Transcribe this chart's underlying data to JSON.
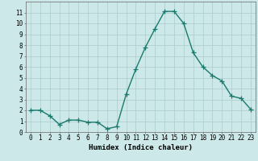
{
  "x": [
    0,
    1,
    2,
    3,
    4,
    5,
    6,
    7,
    8,
    9,
    10,
    11,
    12,
    13,
    14,
    15,
    16,
    17,
    18,
    19,
    20,
    21,
    22,
    23
  ],
  "y": [
    2,
    2,
    1.5,
    0.7,
    1.1,
    1.1,
    0.9,
    0.9,
    0.3,
    0.5,
    3.5,
    5.8,
    7.8,
    9.5,
    11.1,
    11.1,
    10.0,
    7.3,
    6.0,
    5.2,
    4.7,
    3.3,
    3.1,
    2.1
  ],
  "line_color": "#1a7a6e",
  "marker": "+",
  "marker_size": 4,
  "linewidth": 1.0,
  "bg_color": "#cce8e8",
  "grid_color": "#aacccc",
  "xlabel": "Humidex (Indice chaleur)",
  "xlim": [
    -0.5,
    23.5
  ],
  "ylim": [
    0,
    12
  ],
  "yticks": [
    0,
    1,
    2,
    3,
    4,
    5,
    6,
    7,
    8,
    9,
    10,
    11
  ],
  "xticks": [
    0,
    1,
    2,
    3,
    4,
    5,
    6,
    7,
    8,
    9,
    10,
    11,
    12,
    13,
    14,
    15,
    16,
    17,
    18,
    19,
    20,
    21,
    22,
    23
  ],
  "xlabel_fontsize": 6.5,
  "tick_fontsize": 5.5
}
